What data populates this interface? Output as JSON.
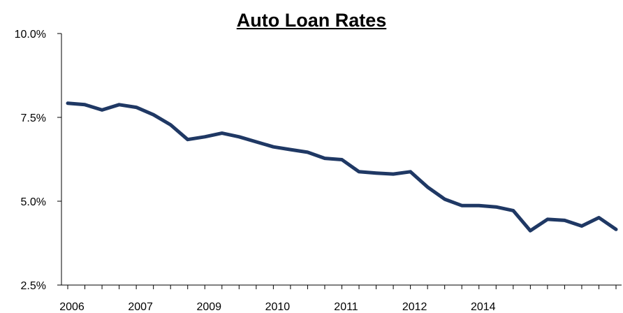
{
  "chart_data": {
    "type": "line",
    "title": "Auto Loan Rates",
    "xlabel": "",
    "ylabel": "",
    "ylim": [
      2.5,
      10.0
    ],
    "yticks": [
      "2.5%",
      "5.0%",
      "7.5%",
      "10.0%"
    ],
    "ytick_values": [
      2.5,
      5.0,
      7.5,
      10.0
    ],
    "xtick_labels": [
      "2006",
      "2007",
      "2009",
      "2010",
      "2011",
      "2012",
      "2014"
    ],
    "xtick_label_index": [
      0,
      4,
      8,
      12,
      16,
      20,
      24
    ],
    "grid": false,
    "legend": "none",
    "line_color": "#1f3864",
    "series": [
      {
        "values": [
          7.92,
          7.88,
          7.72,
          7.88,
          7.8,
          7.58,
          7.28,
          6.84,
          6.92,
          7.03,
          6.92,
          6.77,
          6.62,
          6.54,
          6.46,
          6.28,
          6.24,
          5.88,
          5.84,
          5.81,
          5.88,
          5.42,
          5.06,
          4.87,
          4.87,
          4.83,
          4.72,
          4.12,
          4.46,
          4.43,
          4.26,
          4.51,
          4.16
        ]
      }
    ]
  }
}
